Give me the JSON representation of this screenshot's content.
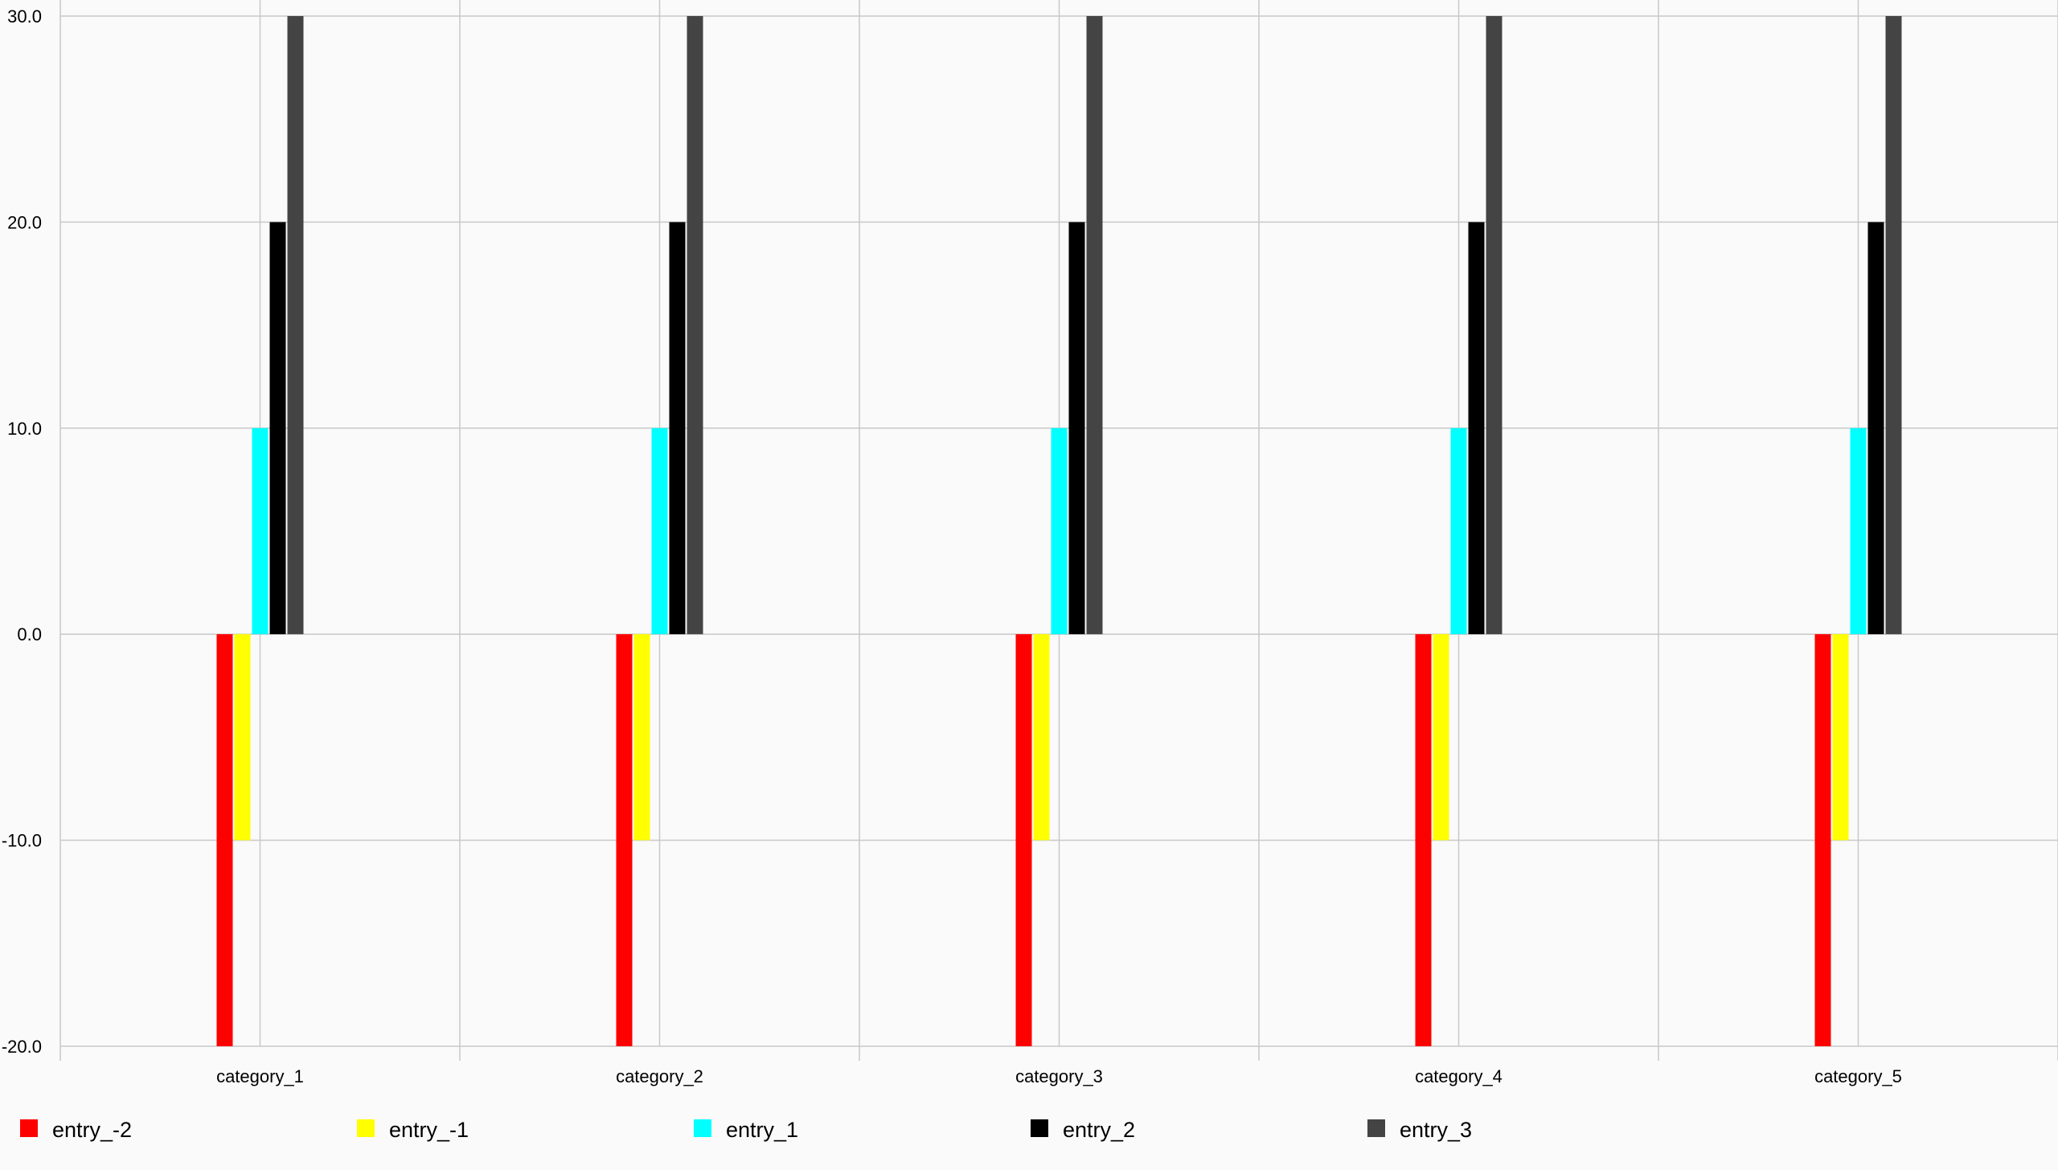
{
  "chart_data": {
    "type": "bar",
    "categories": [
      "category_1",
      "category_2",
      "category_3",
      "category_4",
      "category_5"
    ],
    "series": [
      {
        "name": "entry_-2",
        "color": "#ff0000",
        "values": [
          -20,
          -20,
          -20,
          -20,
          -20
        ]
      },
      {
        "name": "entry_-1",
        "color": "#ffff00",
        "values": [
          -10,
          -10,
          -10,
          -10,
          -10
        ]
      },
      {
        "name": "entry_1",
        "color": "#00ffff",
        "values": [
          10,
          10,
          10,
          10,
          10
        ]
      },
      {
        "name": "entry_2",
        "color": "#000000",
        "values": [
          20,
          20,
          20,
          20,
          20
        ]
      },
      {
        "name": "entry_3",
        "color": "#444444",
        "values": [
          30,
          30,
          30,
          30,
          30
        ]
      }
    ],
    "ylim": [
      -20,
      30
    ],
    "yticks": [
      "30.0",
      "20.0",
      "10.0",
      "0.0",
      "-10.0",
      "-20.0"
    ],
    "ytick_values": [
      30,
      20,
      10,
      0,
      -10,
      -20
    ],
    "grid": true,
    "legend_position": "bottom-left",
    "gridline_color": "#c8c8c8",
    "background": "#fafafa"
  }
}
